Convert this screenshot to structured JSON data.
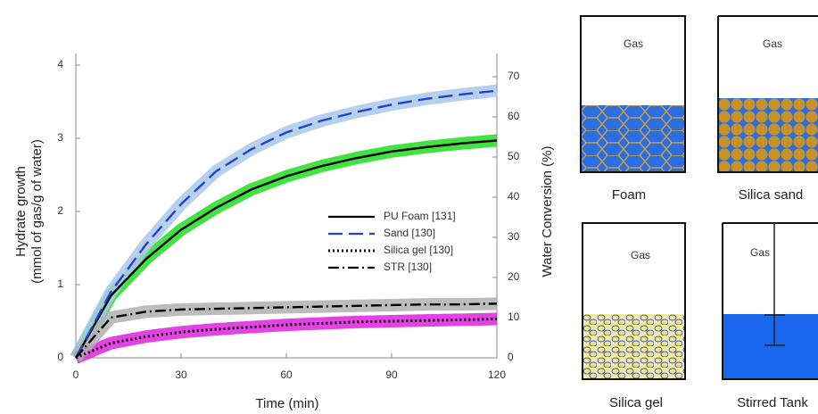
{
  "chart_data": {
    "type": "line",
    "xlabel": "Time (min)",
    "ylabel": [
      "Hydrate growth",
      "(mmol of gas/g of water)"
    ],
    "y2label": "Water Conversion (%)",
    "x": [
      0,
      10,
      20,
      30,
      40,
      50,
      60,
      70,
      80,
      90,
      100,
      110,
      120
    ],
    "xlim": [
      0,
      120
    ],
    "xticks": [
      0,
      30,
      60,
      90,
      120
    ],
    "ylim": [
      0,
      4
    ],
    "yticks": [
      0,
      1,
      2,
      3,
      4
    ],
    "y2lim": [
      0,
      72.9
    ],
    "y2ticks": [
      0,
      10,
      20,
      30,
      40,
      50,
      60,
      70
    ],
    "legend": "center-right",
    "series": [
      {
        "name": "PU Foam [131]",
        "color": "#000000",
        "band_color": "#22dd22",
        "dash": "solid",
        "values": [
          0,
          0.85,
          1.35,
          1.75,
          2.05,
          2.3,
          2.48,
          2.62,
          2.73,
          2.82,
          2.88,
          2.93,
          2.97
        ]
      },
      {
        "name": "Sand [130]",
        "color": "#2244cc",
        "band_color": "#a9c8ea",
        "dash": "dashed",
        "values": [
          0,
          0.9,
          1.55,
          2.1,
          2.55,
          2.85,
          3.08,
          3.24,
          3.36,
          3.46,
          3.54,
          3.6,
          3.65
        ]
      },
      {
        "name": "Silica gel [130]",
        "color": "#000000",
        "band_color": "#dd22dd",
        "dash": "dotted",
        "values": [
          0,
          0.2,
          0.29,
          0.35,
          0.39,
          0.42,
          0.45,
          0.47,
          0.49,
          0.5,
          0.51,
          0.52,
          0.53
        ]
      },
      {
        "name": "STR [130]",
        "color": "#000000",
        "band_color": "#b0b0b0",
        "dash": "dashdot",
        "values": [
          0,
          0.55,
          0.63,
          0.66,
          0.67,
          0.68,
          0.69,
          0.7,
          0.71,
          0.72,
          0.73,
          0.73,
          0.74
        ]
      }
    ]
  },
  "diagram": {
    "panels": [
      {
        "label": "Foam",
        "gas": "Gas"
      },
      {
        "label": "Silica sand",
        "gas": "Gas"
      },
      {
        "label": "Silica gel",
        "gas": "Gas"
      },
      {
        "label": "Stirred Tank",
        "gas": "Gas"
      }
    ]
  }
}
